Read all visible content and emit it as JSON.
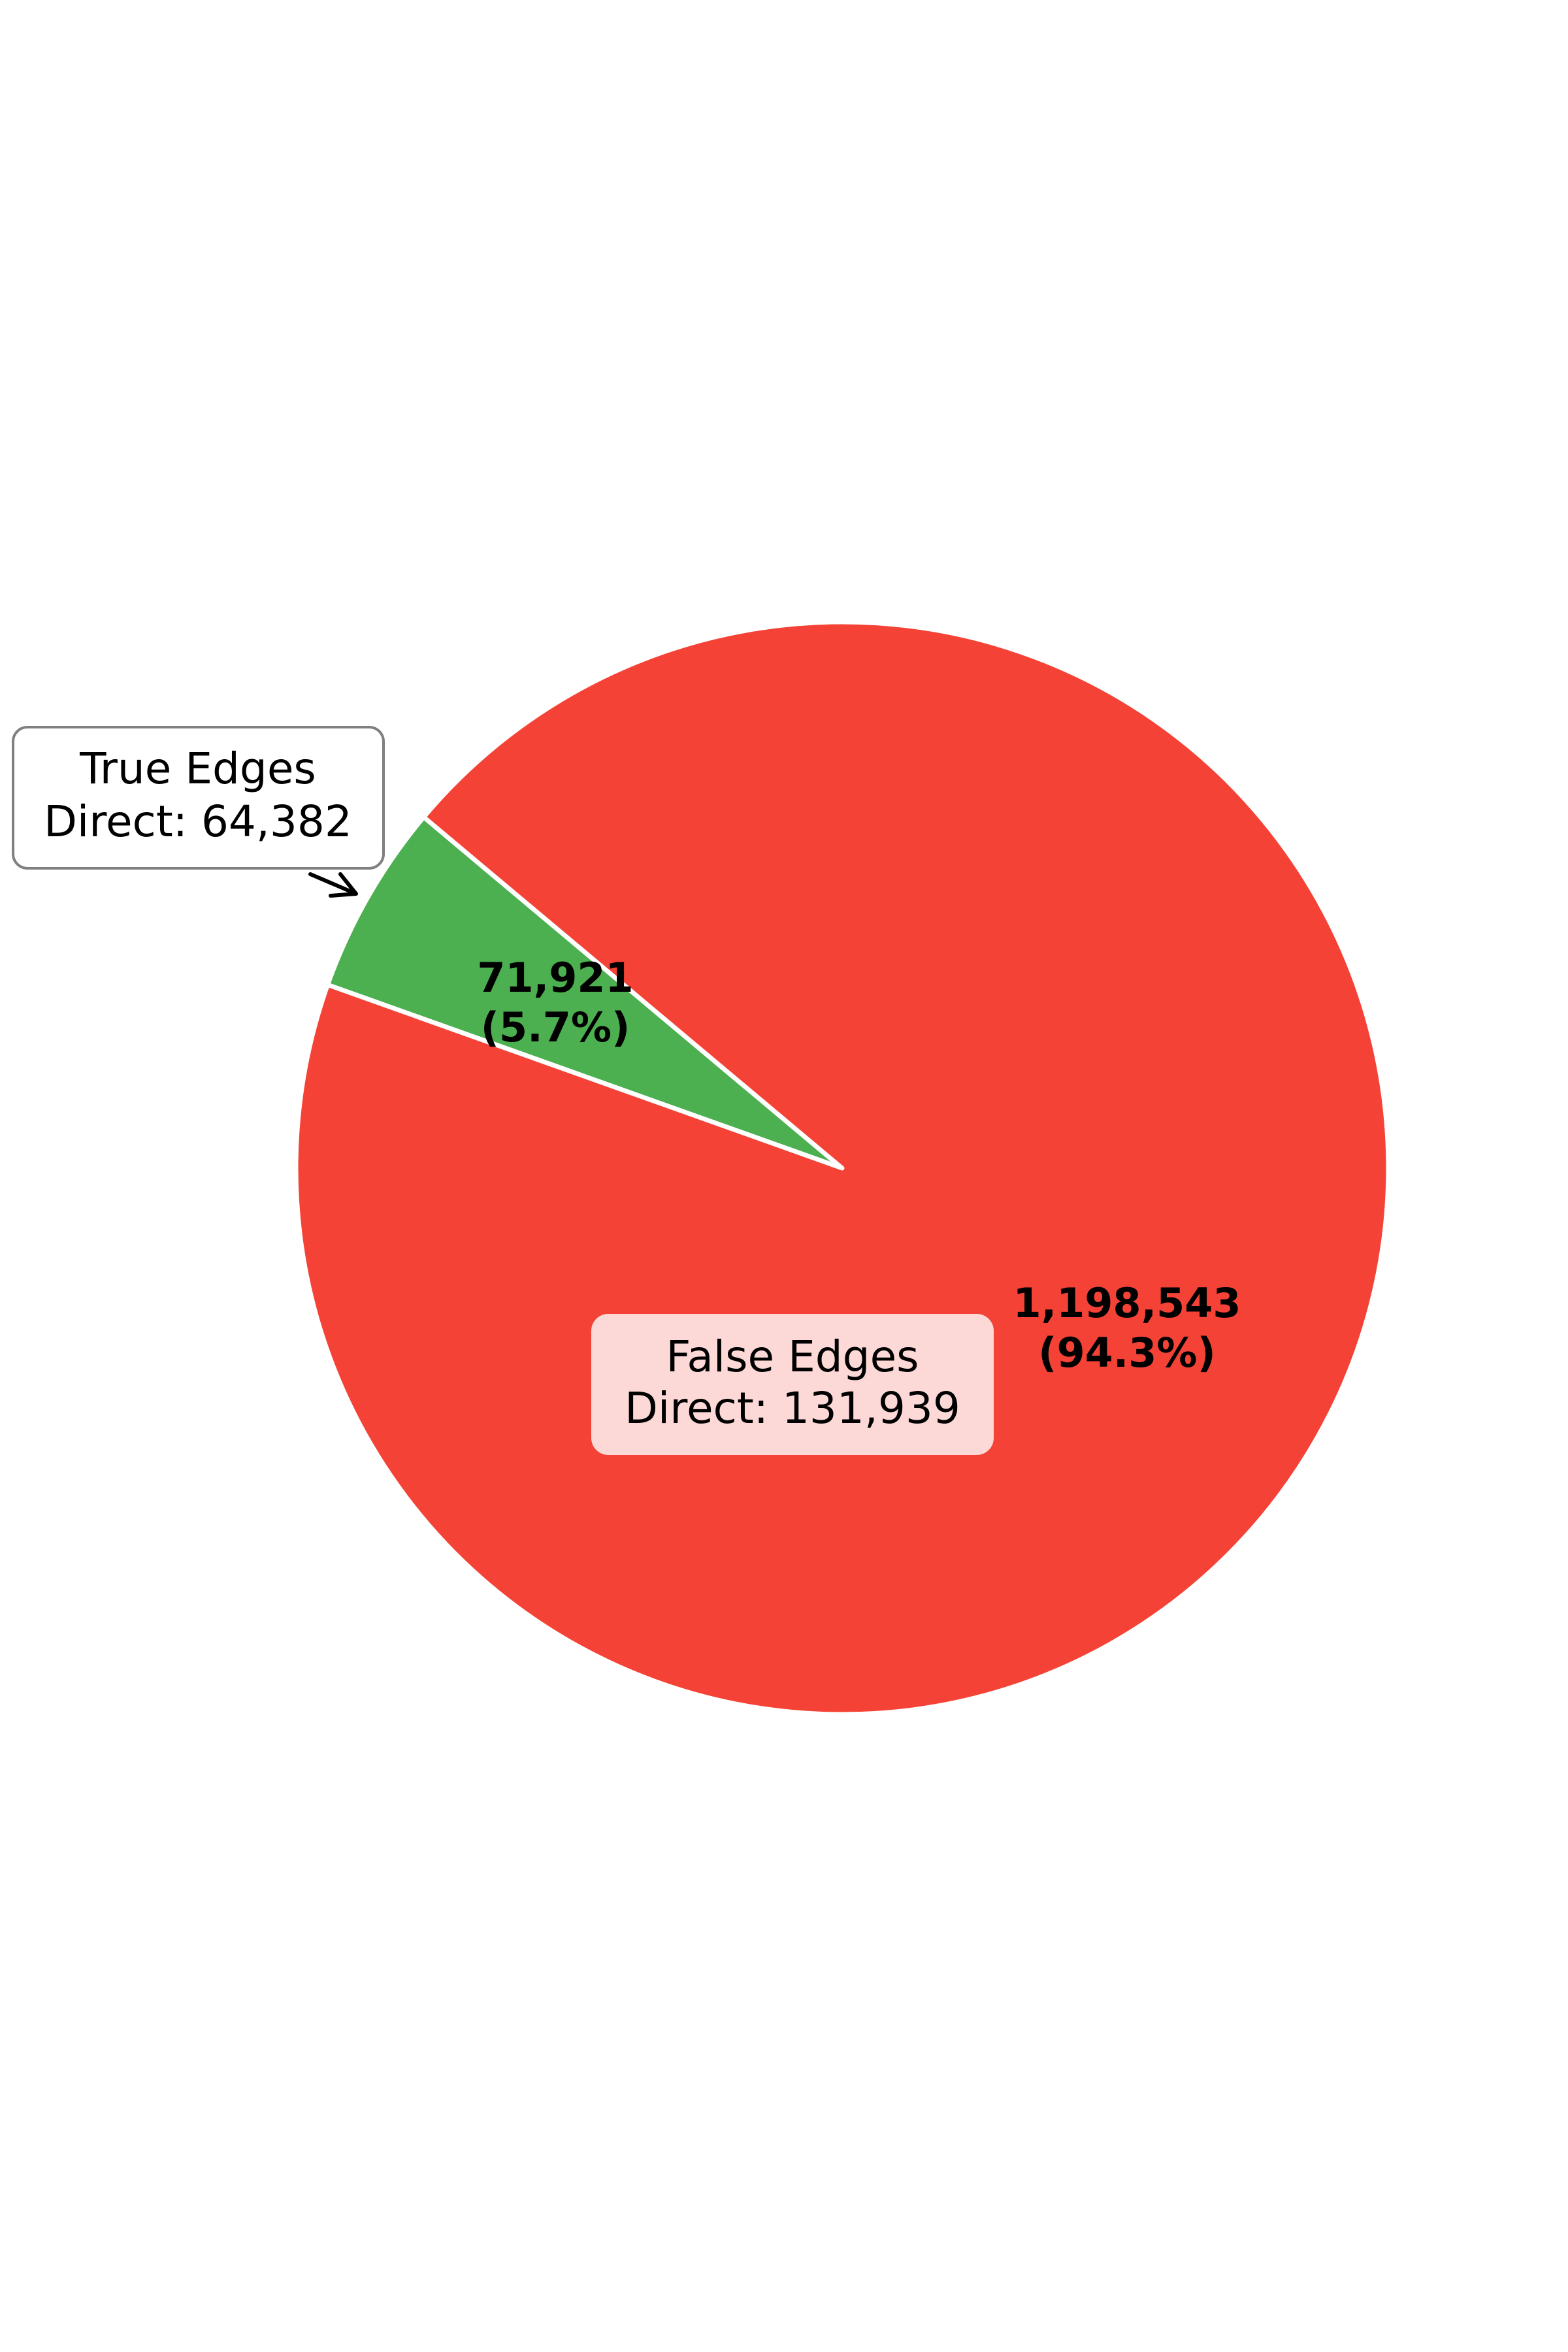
{
  "chart_data": {
    "type": "pie",
    "slices": [
      {
        "name": "True Edges",
        "value": 71921,
        "percent": 5.7,
        "value_label": "71,921",
        "percent_label": "(5.7%)",
        "color": "#4caf50",
        "annotation": [
          "True Edges",
          "Direct: 64,382"
        ]
      },
      {
        "name": "False Edges",
        "value": 1198543,
        "percent": 94.3,
        "value_label": "1,198,543",
        "percent_label": "(94.3%)",
        "color": "#f44336",
        "annotation": [
          "False Edges",
          "Direct: 131,939"
        ]
      }
    ],
    "colors": {
      "true_box_fill": "#ffffff",
      "true_box_border": "#808080",
      "false_box_fill": "#fcd9d7",
      "slice_edge": "#ffffff"
    }
  }
}
